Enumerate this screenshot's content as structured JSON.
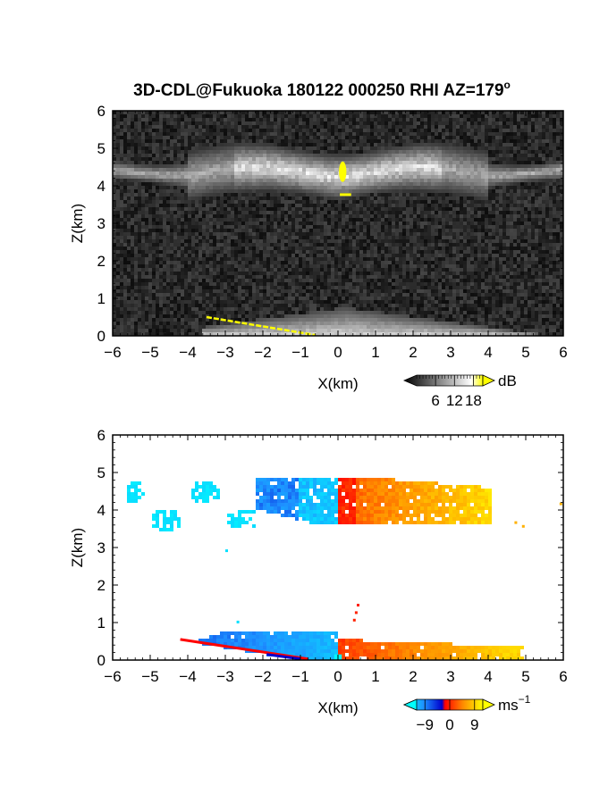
{
  "title": "3D-CDL@Fukuoka 180122 000250 RHI AZ=179",
  "title_superscript": "o",
  "chart_data": [
    {
      "type": "heatmap",
      "name": "reflectivity",
      "xlabel": "X(km)",
      "ylabel": "Z(km)",
      "xlim": [
        -6,
        6
      ],
      "ylim": [
        0,
        6
      ],
      "xticks": [
        -6,
        -5,
        -4,
        -3,
        -2,
        -1,
        0,
        1,
        2,
        3,
        4,
        5,
        6
      ],
      "yticks": [
        0,
        1,
        2,
        3,
        4,
        5,
        6
      ],
      "background": "#1a1a1a",
      "colorbar": {
        "unit": "dB",
        "tick_labels": [
          "6",
          "12",
          "18"
        ],
        "tick_values": [
          6,
          12,
          18
        ],
        "range": [
          0,
          21
        ],
        "colors": [
          "#000000",
          "#ffffff",
          "#ffff00"
        ]
      },
      "features": [
        {
          "kind": "cloud-layer",
          "x": [
            -6,
            6
          ],
          "z": [
            3.6,
            5.0
          ],
          "level_dB": 10
        },
        {
          "kind": "saturated-core",
          "x": [
            0.05,
            0.2
          ],
          "z": [
            4.1,
            4.65
          ],
          "level_dB": 19
        },
        {
          "kind": "surface-echo",
          "x": [
            -3.5,
            5.5
          ],
          "z": [
            0,
            0.75
          ],
          "level_dB": 12
        },
        {
          "kind": "ground-clutter-line",
          "x": [
            -3.5,
            -0.6
          ],
          "z": [
            0.5,
            0.02
          ],
          "level_dB": 19
        }
      ]
    },
    {
      "type": "heatmap",
      "name": "doppler-velocity",
      "xlabel": "X(km)",
      "ylabel": "Z(km)",
      "xlim": [
        -6,
        6
      ],
      "ylim": [
        0,
        6
      ],
      "xticks": [
        -6,
        -5,
        -4,
        -3,
        -2,
        -1,
        0,
        1,
        2,
        3,
        4,
        5,
        6
      ],
      "yticks": [
        0,
        1,
        2,
        3,
        4,
        5,
        6
      ],
      "colorbar": {
        "unit": "ms",
        "unit_superscript": "−1",
        "tick_labels": [
          "−9",
          "0",
          "9"
        ],
        "tick_values": [
          -9,
          0,
          9
        ],
        "range": [
          -12,
          12
        ],
        "colors": [
          "#00ffff",
          "#1e90ff",
          "#0000cd",
          "#ff0000",
          "#ff8c00",
          "#ffff00"
        ]
      },
      "features": [
        {
          "kind": "upper-layer-negative",
          "x": [
            -2.2,
            0
          ],
          "z": [
            3.5,
            4.9
          ],
          "velocity": -6
        },
        {
          "kind": "upper-layer-positive",
          "x": [
            0,
            4.1
          ],
          "z": [
            3.5,
            4.9
          ],
          "velocity": 6
        },
        {
          "kind": "sparse-cyan",
          "x": [
            -5.6,
            -2.2
          ],
          "z": [
            3.4,
            4.9
          ],
          "velocity": -10
        },
        {
          "kind": "low-layer-negative",
          "x": [
            -4.2,
            0
          ],
          "z": [
            0,
            0.75
          ],
          "velocity": -5
        },
        {
          "kind": "low-layer-positive",
          "x": [
            0,
            5.0
          ],
          "z": [
            0,
            0.55
          ],
          "velocity": 7
        },
        {
          "kind": "red-edge-line",
          "x": [
            -4.2,
            -0.8
          ],
          "z": [
            0.55,
            0.03
          ],
          "velocity": 1
        }
      ]
    }
  ]
}
